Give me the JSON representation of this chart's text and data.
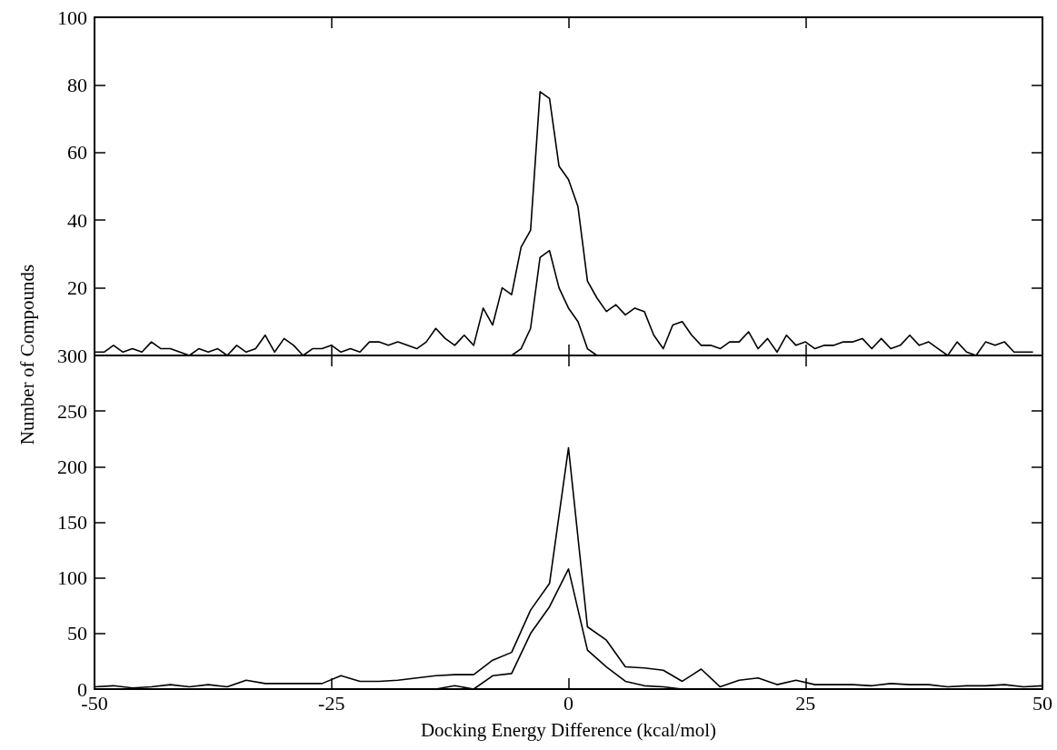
{
  "chart_data": [
    {
      "type": "line",
      "ylabel": "Number of Compounds",
      "marker": "none",
      "tick_labels": "y",
      "x": [
        -50,
        -49,
        -48,
        -47,
        -46,
        -45,
        -44,
        -43,
        -42,
        -41,
        -40,
        -39,
        -38,
        -37,
        -36,
        -35,
        -34,
        -33,
        -32,
        -31,
        -30,
        -29,
        -28,
        -27,
        -26,
        -25,
        -24,
        -23,
        -22,
        -21,
        -20,
        -19,
        -18,
        -17,
        -16,
        -15,
        -14,
        -13,
        -12,
        -11,
        -10,
        -9,
        -8,
        -7,
        -6,
        -5,
        -4,
        -3,
        -2,
        -1,
        0,
        1,
        2,
        3,
        4,
        5,
        6,
        7,
        8,
        9,
        10,
        11,
        12,
        13,
        14,
        15,
        16,
        17,
        18,
        19,
        20,
        21,
        22,
        23,
        24,
        25,
        26,
        27,
        28,
        29,
        30,
        31,
        32,
        33,
        34,
        35,
        36,
        37,
        38,
        39,
        40,
        41,
        42,
        43,
        44,
        45,
        46,
        47,
        48,
        49
      ],
      "series": [
        {
          "color": "#000000",
          "values": [
            1,
            1,
            3,
            1,
            2,
            1,
            4,
            2,
            2,
            1,
            0,
            2,
            1,
            2,
            0,
            3,
            1,
            2,
            6,
            1,
            5,
            3,
            0,
            2,
            2,
            3,
            1,
            2,
            1,
            4,
            4,
            3,
            4,
            3,
            2,
            4,
            8,
            5,
            3,
            6,
            3,
            14,
            9,
            20,
            18,
            32,
            37,
            78,
            76,
            56,
            52,
            44,
            22,
            17,
            13,
            15,
            12,
            14,
            13,
            6,
            2,
            9,
            10,
            6,
            3,
            3,
            2,
            4,
            4,
            7,
            2,
            5,
            1,
            6,
            3,
            4,
            2,
            3,
            3,
            4,
            4,
            5,
            2,
            5,
            2,
            3,
            6,
            3,
            4,
            2,
            0,
            4,
            1,
            0,
            4,
            3,
            4,
            1,
            1,
            1
          ]
        },
        {
          "color": "#000000",
          "values": [
            null,
            null,
            null,
            null,
            null,
            null,
            null,
            null,
            null,
            null,
            null,
            null,
            null,
            null,
            null,
            null,
            null,
            null,
            null,
            null,
            null,
            null,
            null,
            null,
            null,
            null,
            null,
            null,
            null,
            null,
            null,
            null,
            null,
            null,
            null,
            null,
            null,
            null,
            null,
            null,
            null,
            null,
            null,
            null,
            0,
            2,
            8,
            29,
            31,
            20,
            14,
            10,
            2,
            0,
            null,
            null,
            null,
            null,
            null,
            null,
            null,
            null,
            null,
            null,
            null,
            null,
            null,
            null,
            null,
            null,
            null,
            null,
            null,
            null,
            null,
            null,
            null,
            null,
            null,
            null,
            null,
            null,
            null,
            null,
            null,
            null,
            null,
            null,
            null,
            null,
            null,
            null,
            null,
            null,
            null,
            null,
            null,
            null,
            null,
            null
          ]
        }
      ],
      "xlim": [
        -50,
        50
      ],
      "xticks": [
        {
          "value": -50,
          "label": null
        },
        {
          "value": -25,
          "label": null
        },
        {
          "value": 0,
          "label": null
        },
        {
          "value": 25,
          "label": null
        },
        {
          "value": 50,
          "label": null
        }
      ],
      "ylim": [
        0,
        100
      ],
      "yticks": [
        {
          "value": 0,
          "label": null
        },
        20,
        40,
        60,
        80,
        100
      ]
    },
    {
      "type": "line",
      "xlabel": "Docking Energy Difference (kcal/mol)",
      "marker": "none",
      "x": [
        -50,
        -48,
        -46,
        -44,
        -42,
        -40,
        -38,
        -36,
        -34,
        -32,
        -30,
        -28,
        -26,
        -24,
        -22,
        -20,
        -18,
        -16,
        -14,
        -12,
        -10,
        -8,
        -6,
        -4,
        -2,
        0,
        2,
        4,
        6,
        8,
        10,
        12,
        14,
        16,
        18,
        20,
        22,
        24,
        26,
        28,
        30,
        32,
        34,
        36,
        38,
        40,
        42,
        44,
        46,
        48,
        50
      ],
      "series": [
        {
          "color": "#000000",
          "values": [
            2,
            3,
            1,
            2,
            4,
            2,
            4,
            2,
            8,
            5,
            5,
            5,
            5,
            12,
            7,
            7,
            8,
            10,
            12,
            13,
            13,
            26,
            33,
            71,
            95,
            217,
            56,
            44,
            20,
            19,
            17,
            7,
            18,
            2,
            8,
            10,
            4,
            8,
            4,
            4,
            4,
            3,
            5,
            4,
            4,
            2,
            3,
            3,
            4,
            2,
            3
          ]
        },
        {
          "color": "#000000",
          "values": [
            0,
            0,
            0,
            0,
            0,
            0,
            0,
            0,
            0,
            0,
            0,
            0,
            0,
            0,
            0,
            0,
            0,
            0,
            0,
            3,
            0,
            12,
            14,
            50,
            74,
            108,
            35,
            20,
            7,
            3,
            2,
            0,
            0,
            0,
            0,
            0,
            0,
            0,
            0,
            0,
            0,
            0,
            0,
            0,
            0,
            0,
            0,
            0,
            0,
            0,
            0
          ]
        }
      ],
      "xlim": [
        -50,
        50
      ],
      "xticks": [
        -50,
        -25,
        0,
        25,
        50
      ],
      "ylim": [
        0,
        300
      ],
      "yticks": [
        0,
        50,
        100,
        150,
        200,
        250,
        300
      ]
    }
  ]
}
